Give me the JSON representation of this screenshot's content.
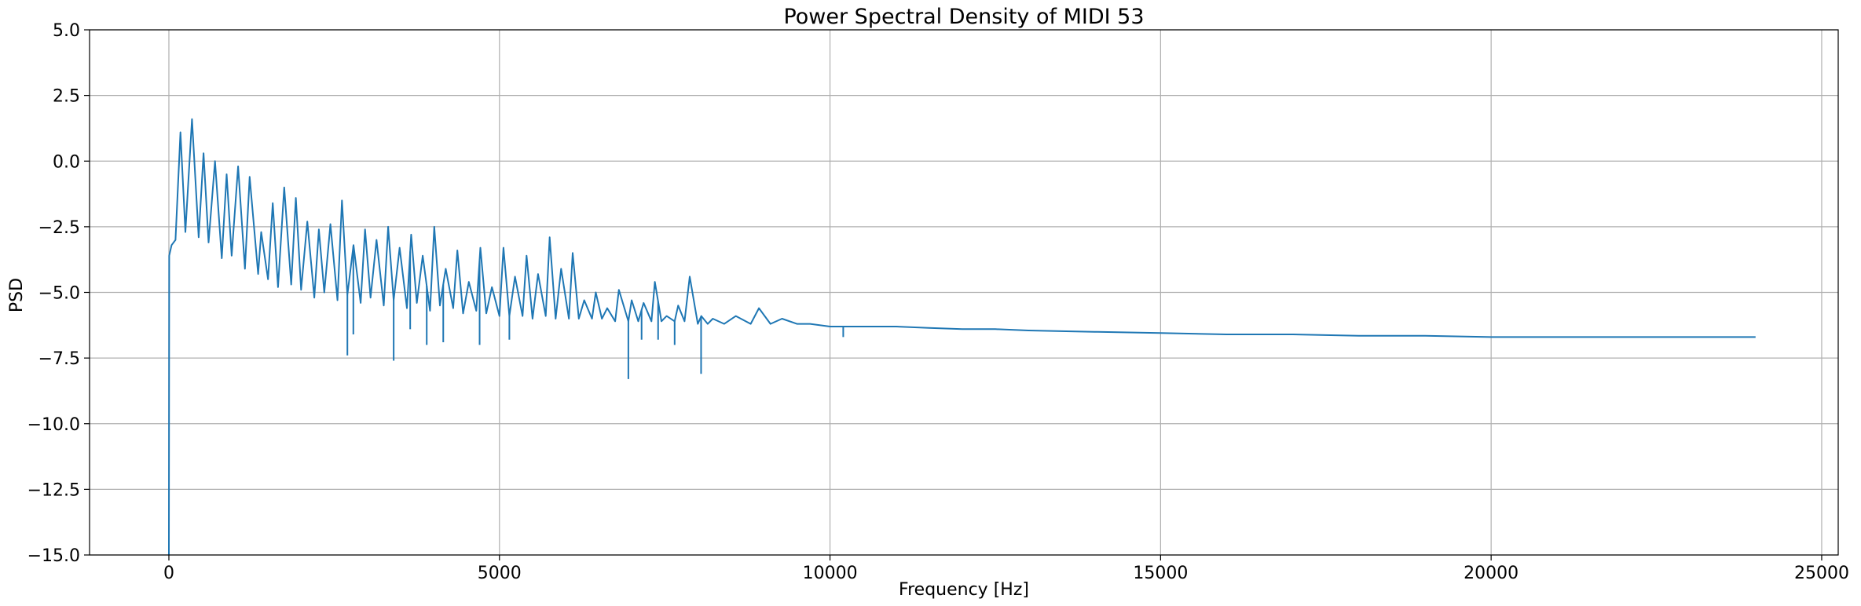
{
  "chart_data": {
    "type": "line",
    "title": "Power Spectral Density of MIDI 53",
    "xlabel": "Frequency [Hz]",
    "ylabel": "PSD",
    "xlim": [
      -1200,
      25250
    ],
    "ylim": [
      -15.0,
      5.0
    ],
    "xticks": [
      0,
      5000,
      10000,
      15000,
      20000,
      25000
    ],
    "xtick_labels": [
      "0",
      "5000",
      "10000",
      "15000",
      "20000",
      "25000"
    ],
    "yticks": [
      5.0,
      2.5,
      0.0,
      -2.5,
      -5.0,
      -7.5,
      -10.0,
      -12.5,
      -15.0
    ],
    "ytick_labels": [
      "5.0",
      "2.5",
      "0.0",
      "−2.5",
      "−5.0",
      "−7.5",
      "−10.0",
      "−12.5",
      "−15.0"
    ],
    "grid": true,
    "color": "#1f77b4",
    "series": [
      {
        "fundamental_hz": 175,
        "x": [
          0,
          5,
          40,
          100,
          175,
          250,
          349,
          450,
          524,
          600,
          698,
          800,
          873,
          950,
          1047,
          1150,
          1222,
          1350,
          1396,
          1500,
          1571,
          1650,
          1745,
          1850,
          1920,
          2000,
          2094,
          2200,
          2269,
          2350,
          2443,
          2550,
          2618,
          2700,
          2792,
          2900,
          2967,
          3050,
          3141,
          3250,
          3316,
          3400,
          3490,
          3600,
          3665,
          3750,
          3839,
          3950,
          4014,
          4100,
          4188,
          4300,
          4363,
          4450,
          4537,
          4650,
          4712,
          4800,
          4886,
          5000,
          5061,
          5150,
          5235,
          5350,
          5410,
          5500,
          5584,
          5700,
          5759,
          5850,
          5933,
          6050,
          6108,
          6200,
          6282,
          6400,
          6457,
          6550,
          6631,
          6750,
          6806,
          6950,
          7000,
          7100,
          7180,
          7300,
          7350,
          7450,
          7529,
          7650,
          7704,
          7800,
          7878,
          8000,
          8053,
          8150,
          8227,
          8400,
          8576,
          8800,
          8925,
          9100,
          9274,
          9500,
          9700,
          10000,
          10500,
          11000,
          11500,
          12000,
          12500,
          13000,
          14000,
          15000,
          16000,
          17000,
          18000,
          19000,
          20000,
          21000,
          22000,
          23000,
          24000
        ],
        "values": [
          -15.0,
          -3.6,
          -3.2,
          -3.0,
          1.1,
          -2.7,
          1.6,
          -2.9,
          0.3,
          -3.1,
          0.0,
          -3.7,
          -0.5,
          -3.6,
          -0.2,
          -4.1,
          -0.6,
          -4.3,
          -2.7,
          -4.5,
          -1.6,
          -4.8,
          -1.0,
          -4.7,
          -1.4,
          -4.9,
          -2.3,
          -5.2,
          -2.6,
          -5.0,
          -2.4,
          -5.3,
          -1.5,
          -5.1,
          -3.2,
          -5.4,
          -2.6,
          -5.2,
          -3.0,
          -5.5,
          -2.5,
          -5.3,
          -3.3,
          -5.6,
          -2.8,
          -5.4,
          -3.6,
          -5.7,
          -2.5,
          -5.5,
          -4.1,
          -5.6,
          -3.4,
          -5.8,
          -4.6,
          -5.7,
          -3.3,
          -5.8,
          -4.8,
          -5.9,
          -3.3,
          -5.9,
          -4.4,
          -5.9,
          -3.6,
          -6.0,
          -4.3,
          -5.9,
          -2.9,
          -6.0,
          -4.1,
          -6.0,
          -3.5,
          -6.0,
          -5.3,
          -6.0,
          -5.0,
          -6.0,
          -5.6,
          -6.1,
          -4.9,
          -6.1,
          -5.3,
          -6.1,
          -5.4,
          -6.1,
          -4.6,
          -6.1,
          -5.9,
          -6.1,
          -5.5,
          -6.1,
          -4.4,
          -6.2,
          -5.9,
          -6.2,
          -6.0,
          -6.2,
          -5.9,
          -6.2,
          -5.6,
          -6.2,
          -6.0,
          -6.2,
          -6.2,
          -6.3,
          -6.3,
          -6.3,
          -6.35,
          -6.4,
          -6.4,
          -6.45,
          -6.5,
          -6.55,
          -6.6,
          -6.6,
          -6.65,
          -6.65,
          -6.7,
          -6.7,
          -6.7,
          -6.7,
          -6.7
        ]
      }
    ],
    "dips": [
      {
        "x": 2700,
        "y": -7.4
      },
      {
        "x": 2790,
        "y": -6.6
      },
      {
        "x": 3400,
        "y": -7.6
      },
      {
        "x": 3650,
        "y": -6.4
      },
      {
        "x": 3900,
        "y": -7.0
      },
      {
        "x": 4150,
        "y": -6.9
      },
      {
        "x": 4700,
        "y": -7.0
      },
      {
        "x": 5150,
        "y": -6.8
      },
      {
        "x": 6950,
        "y": -8.3
      },
      {
        "x": 7150,
        "y": -6.8
      },
      {
        "x": 7400,
        "y": -6.8
      },
      {
        "x": 7650,
        "y": -7.0
      },
      {
        "x": 8050,
        "y": -8.1
      },
      {
        "x": 10200,
        "y": -6.7
      }
    ]
  }
}
